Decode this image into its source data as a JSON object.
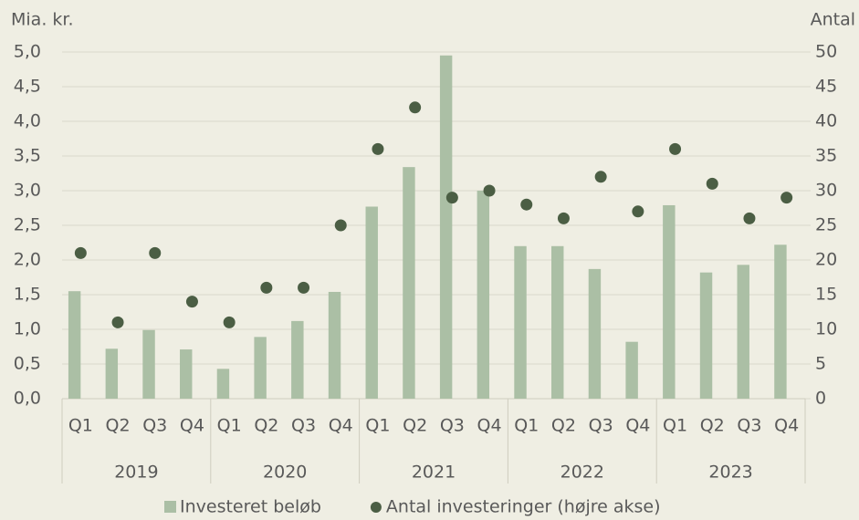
{
  "chart_data": {
    "type": "bar",
    "ylabel": "Mia. kr.",
    "y2label": "Antal",
    "categories": [
      "Q1",
      "Q2",
      "Q3",
      "Q4",
      "Q1",
      "Q2",
      "Q3",
      "Q4",
      "Q1",
      "Q2",
      "Q3",
      "Q4",
      "Q1",
      "Q2",
      "Q3",
      "Q4",
      "Q1",
      "Q2",
      "Q3",
      "Q4"
    ],
    "groups": [
      "2019",
      "2020",
      "2021",
      "2022",
      "2023"
    ],
    "series": [
      {
        "name": "Investeret beløb",
        "type": "bar",
        "color": "#abbfa5",
        "values": [
          1.55,
          0.72,
          0.99,
          0.71,
          0.43,
          0.89,
          1.12,
          1.54,
          2.77,
          3.34,
          4.95,
          3.0,
          2.2,
          2.2,
          1.87,
          0.82,
          2.79,
          1.82,
          1.93,
          2.22
        ]
      },
      {
        "name": "Antal investeringer (højre akse)",
        "type": "scatter",
        "axis": "y2",
        "color": "#4b5e44",
        "values": [
          21,
          11,
          21,
          14,
          11,
          16,
          16,
          25,
          36,
          42,
          29,
          30,
          28,
          26,
          32,
          27,
          36,
          31,
          26,
          29
        ]
      }
    ],
    "ylim": [
      0,
      5
    ],
    "yticks": [
      {
        "value": 0,
        "label": "0,0"
      },
      {
        "value": 0.5,
        "label": "0,5"
      },
      {
        "value": 1,
        "label": "1,0"
      },
      {
        "value": 1.5,
        "label": "1,5"
      },
      {
        "value": 2,
        "label": "2,0"
      },
      {
        "value": 2.5,
        "label": "2,5"
      },
      {
        "value": 3,
        "label": "3,0"
      },
      {
        "value": 3.5,
        "label": "3,5"
      },
      {
        "value": 4,
        "label": "4,0"
      },
      {
        "value": 4.5,
        "label": "4,5"
      },
      {
        "value": 5,
        "label": "5,0"
      }
    ],
    "y2lim": [
      0,
      50
    ],
    "y2ticks": [
      0,
      5,
      10,
      15,
      20,
      25,
      30,
      35,
      40,
      45,
      50
    ],
    "grid": true,
    "legend": "bottom"
  }
}
